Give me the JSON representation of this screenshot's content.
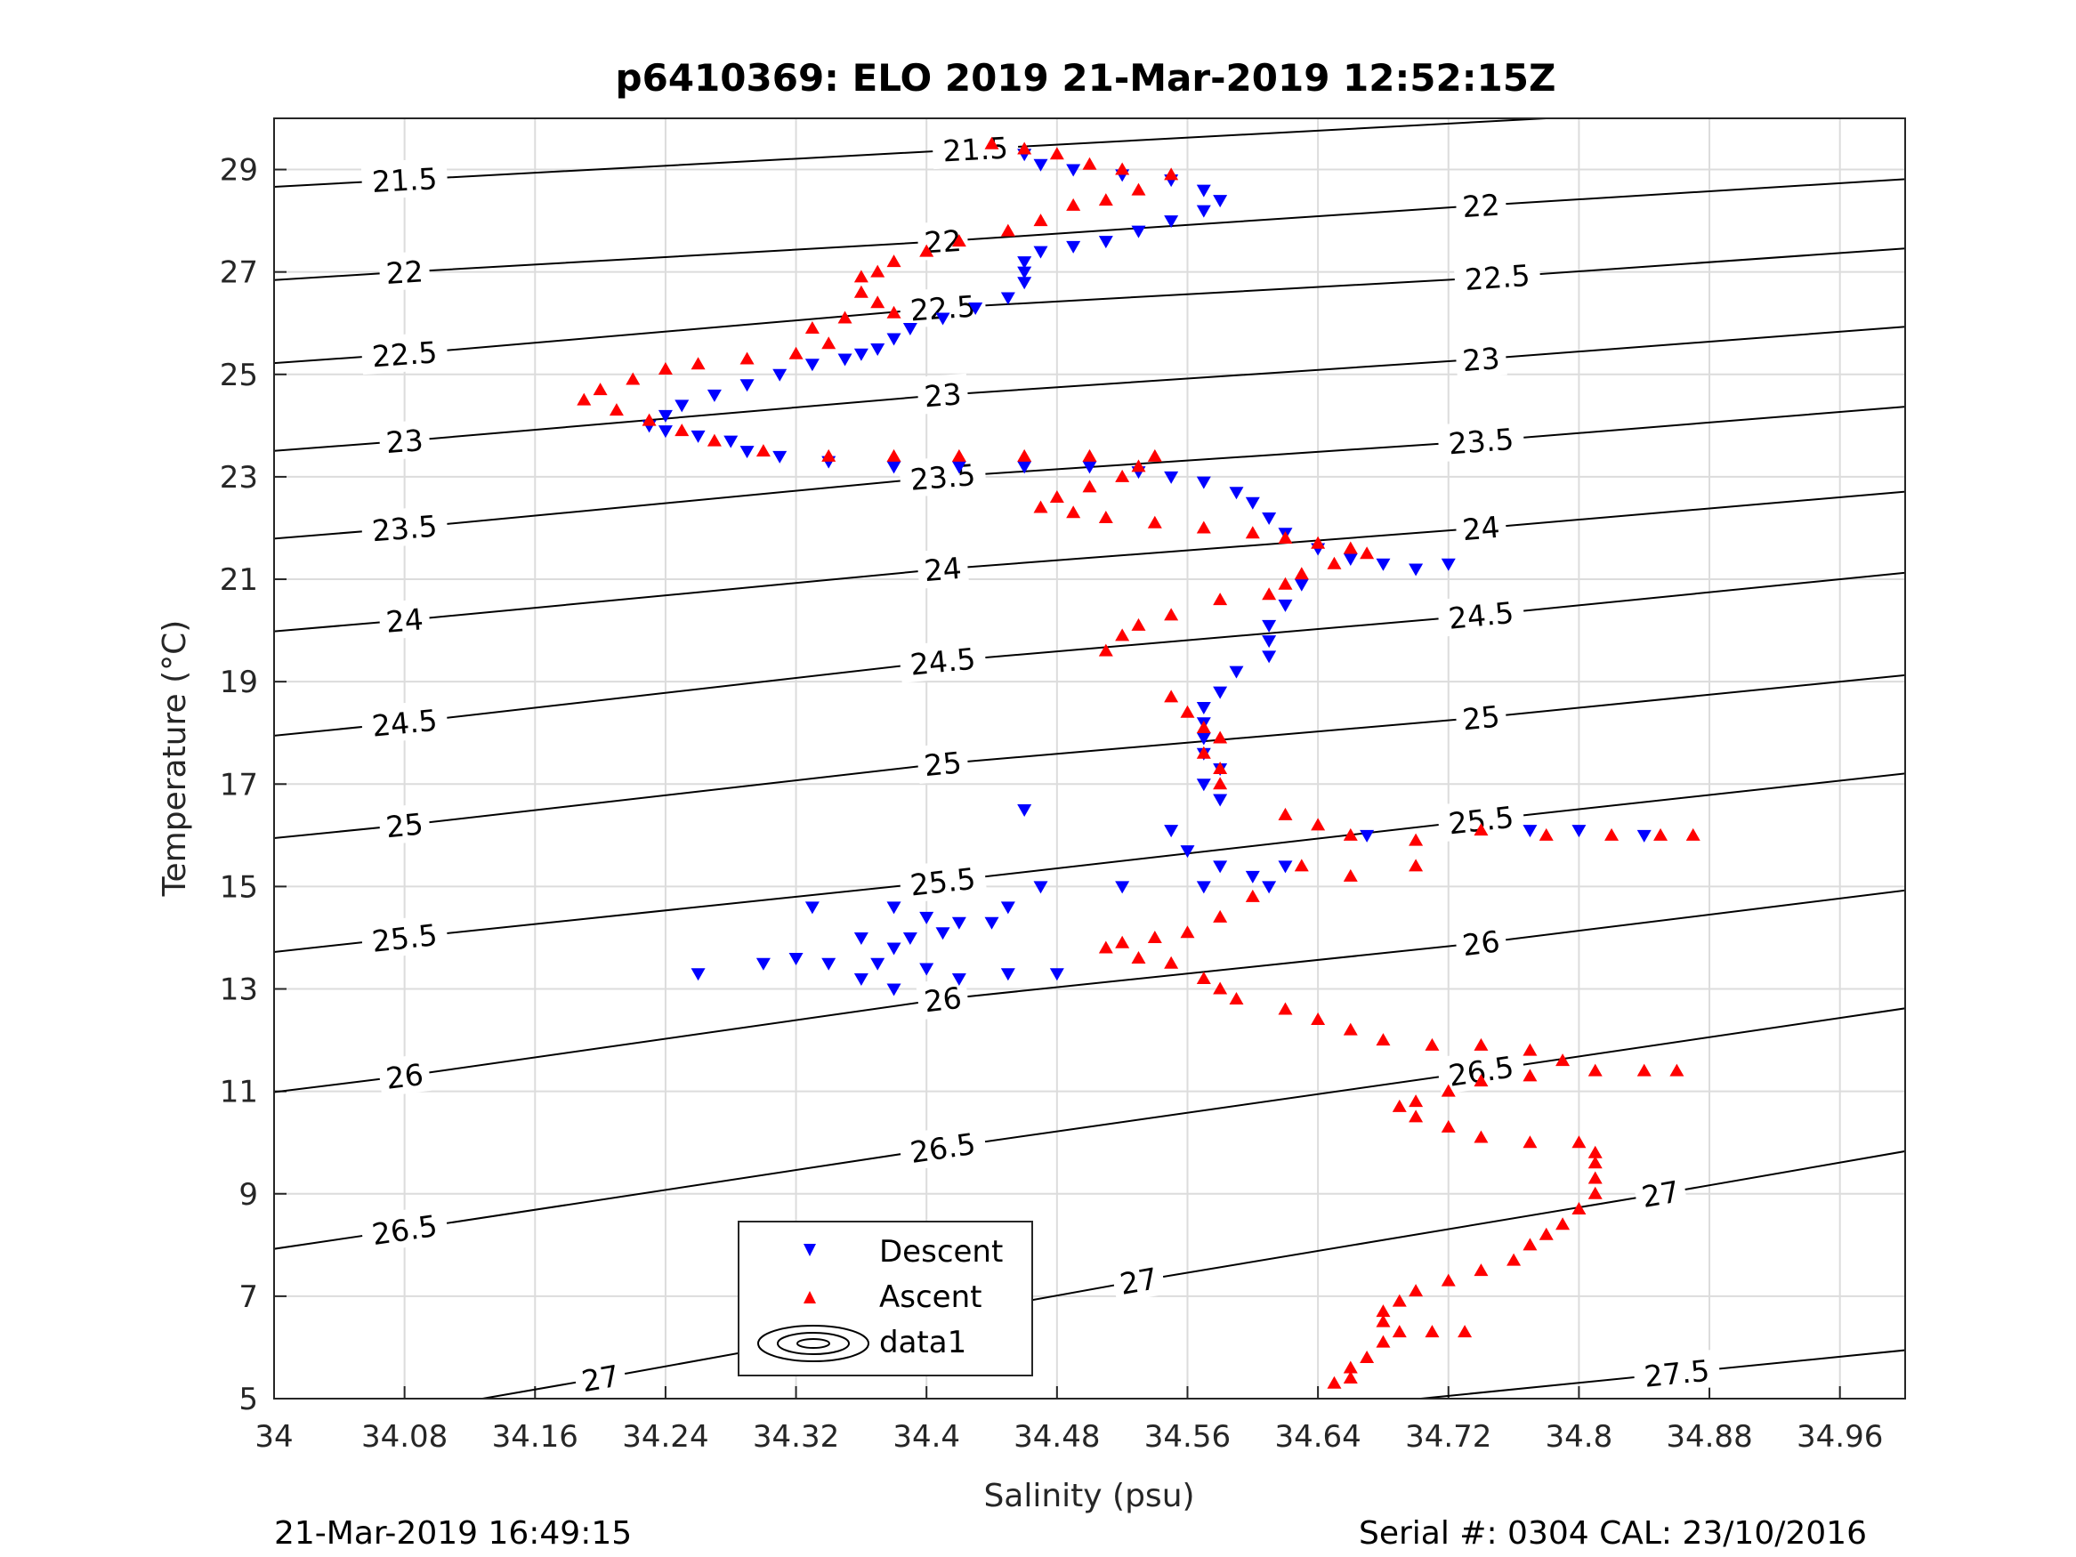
{
  "chart_data": {
    "type": "scatter",
    "title": "p6410369: ELO 2019 21-Mar-2019 12:52:15Z",
    "xlabel": "Salinity (psu)",
    "ylabel": "Temperature (°C)",
    "xlim": [
      34.0,
      35.0
    ],
    "ylim": [
      5,
      30
    ],
    "xticks": [
      "34",
      "34.08",
      "34.16",
      "34.24",
      "34.32",
      "34.4",
      "34.48",
      "34.56",
      "34.64",
      "34.72",
      "34.8",
      "34.88",
      "34.96"
    ],
    "yticks": [
      "5",
      "7",
      "9",
      "11",
      "13",
      "15",
      "17",
      "19",
      "21",
      "23",
      "25",
      "27",
      "29"
    ],
    "grid": true,
    "legend_position": "bottom-center",
    "legend": [
      "Descent",
      "Ascent",
      "data1"
    ],
    "colors": {
      "descent": "#0000ff",
      "ascent": "#ff0000",
      "contour": "#000000"
    },
    "footer_left": "21-Mar-2019 16:49:15",
    "footer_right": "Serial #: 0304  CAL: 23/10/2016",
    "density_contours": [
      {
        "level": "21.5",
        "label_positions": [
          [
            34.08,
            28.8
          ],
          [
            34.43,
            29.4
          ]
        ]
      },
      {
        "level": "22",
        "label_positions": [
          [
            34.08,
            27.0
          ],
          [
            34.41,
            27.6
          ],
          [
            34.74,
            28.3
          ]
        ]
      },
      {
        "level": "22.5",
        "label_positions": [
          [
            34.08,
            25.4
          ],
          [
            34.41,
            26.3
          ],
          [
            34.75,
            26.9
          ]
        ]
      },
      {
        "level": "23",
        "label_positions": [
          [
            34.08,
            23.7
          ],
          [
            34.41,
            24.6
          ],
          [
            34.74,
            25.3
          ]
        ]
      },
      {
        "level": "23.5",
        "label_positions": [
          [
            34.08,
            22.0
          ],
          [
            34.41,
            23.0
          ],
          [
            34.74,
            23.7
          ]
        ]
      },
      {
        "level": "24",
        "label_positions": [
          [
            34.08,
            20.2
          ],
          [
            34.41,
            21.2
          ],
          [
            34.74,
            22.0
          ]
        ]
      },
      {
        "level": "24.5",
        "label_positions": [
          [
            34.08,
            18.2
          ],
          [
            34.41,
            19.4
          ],
          [
            34.74,
            20.3
          ]
        ]
      },
      {
        "level": "25",
        "label_positions": [
          [
            34.08,
            16.2
          ],
          [
            34.41,
            17.4
          ],
          [
            34.74,
            18.3
          ]
        ]
      },
      {
        "level": "25.5",
        "label_positions": [
          [
            34.08,
            14.0
          ],
          [
            34.41,
            15.1
          ],
          [
            34.74,
            16.3
          ]
        ]
      },
      {
        "level": "26",
        "label_positions": [
          [
            34.08,
            11.3
          ],
          [
            34.41,
            12.8
          ],
          [
            34.74,
            13.9
          ]
        ]
      },
      {
        "level": "26.5",
        "label_positions": [
          [
            34.08,
            8.3
          ],
          [
            34.41,
            9.9
          ],
          [
            34.74,
            11.4
          ]
        ]
      },
      {
        "level": "27",
        "label_positions": [
          [
            34.2,
            5.4
          ],
          [
            34.53,
            7.3
          ],
          [
            34.85,
            9.0
          ]
        ]
      },
      {
        "level": "27.5",
        "label_positions": [
          [
            34.86,
            5.5
          ]
        ]
      }
    ],
    "series": [
      {
        "name": "Descent",
        "marker": "triangle-down",
        "points": [
          [
            34.46,
            29.3
          ],
          [
            34.47,
            29.1
          ],
          [
            34.49,
            29.0
          ],
          [
            34.52,
            28.9
          ],
          [
            34.55,
            28.8
          ],
          [
            34.57,
            28.6
          ],
          [
            34.58,
            28.4
          ],
          [
            34.57,
            28.2
          ],
          [
            34.55,
            28.0
          ],
          [
            34.53,
            27.8
          ],
          [
            34.51,
            27.6
          ],
          [
            34.49,
            27.5
          ],
          [
            34.47,
            27.4
          ],
          [
            34.46,
            27.2
          ],
          [
            34.46,
            27.0
          ],
          [
            34.46,
            26.8
          ],
          [
            34.45,
            26.5
          ],
          [
            34.43,
            26.3
          ],
          [
            34.41,
            26.1
          ],
          [
            34.39,
            25.9
          ],
          [
            34.38,
            25.7
          ],
          [
            34.37,
            25.5
          ],
          [
            34.36,
            25.4
          ],
          [
            34.35,
            25.3
          ],
          [
            34.33,
            25.2
          ],
          [
            34.31,
            25.0
          ],
          [
            34.29,
            24.8
          ],
          [
            34.27,
            24.6
          ],
          [
            34.25,
            24.4
          ],
          [
            34.24,
            24.2
          ],
          [
            34.23,
            24.0
          ],
          [
            34.24,
            23.9
          ],
          [
            34.26,
            23.8
          ],
          [
            34.28,
            23.7
          ],
          [
            34.29,
            23.5
          ],
          [
            34.31,
            23.4
          ],
          [
            34.34,
            23.3
          ],
          [
            34.38,
            23.2
          ],
          [
            34.42,
            23.2
          ],
          [
            34.46,
            23.2
          ],
          [
            34.5,
            23.2
          ],
          [
            34.53,
            23.1
          ],
          [
            34.55,
            23.0
          ],
          [
            34.57,
            22.9
          ],
          [
            34.59,
            22.7
          ],
          [
            34.6,
            22.5
          ],
          [
            34.61,
            22.2
          ],
          [
            34.62,
            21.9
          ],
          [
            34.64,
            21.6
          ],
          [
            34.66,
            21.4
          ],
          [
            34.68,
            21.3
          ],
          [
            34.7,
            21.2
          ],
          [
            34.72,
            21.3
          ],
          [
            34.63,
            20.9
          ],
          [
            34.62,
            20.5
          ],
          [
            34.61,
            20.1
          ],
          [
            34.61,
            19.8
          ],
          [
            34.61,
            19.5
          ],
          [
            34.59,
            19.2
          ],
          [
            34.58,
            18.8
          ],
          [
            34.57,
            18.5
          ],
          [
            34.57,
            18.2
          ],
          [
            34.57,
            17.9
          ],
          [
            34.57,
            17.6
          ],
          [
            34.58,
            17.3
          ],
          [
            34.57,
            17.0
          ],
          [
            34.58,
            16.7
          ],
          [
            34.55,
            16.1
          ],
          [
            34.56,
            15.7
          ],
          [
            34.58,
            15.4
          ],
          [
            34.6,
            15.2
          ],
          [
            34.61,
            15.0
          ],
          [
            34.62,
            15.4
          ],
          [
            34.57,
            15.0
          ],
          [
            34.52,
            15.0
          ],
          [
            34.47,
            15.0
          ],
          [
            34.45,
            14.6
          ],
          [
            34.44,
            14.3
          ],
          [
            34.42,
            14.3
          ],
          [
            34.41,
            14.1
          ],
          [
            34.4,
            14.4
          ],
          [
            34.39,
            14.0
          ],
          [
            34.38,
            13.8
          ],
          [
            34.37,
            13.5
          ],
          [
            34.36,
            13.2
          ],
          [
            34.38,
            13.0
          ],
          [
            34.4,
            13.4
          ],
          [
            34.42,
            13.2
          ],
          [
            34.45,
            13.3
          ],
          [
            34.48,
            13.3
          ],
          [
            34.34,
            13.5
          ],
          [
            34.32,
            13.6
          ],
          [
            34.3,
            13.5
          ],
          [
            34.26,
            13.3
          ],
          [
            34.33,
            14.6
          ],
          [
            34.36,
            14.0
          ],
          [
            34.38,
            14.6
          ],
          [
            34.46,
            16.5
          ],
          [
            34.77,
            16.1
          ],
          [
            34.8,
            16.1
          ],
          [
            34.84,
            16.0
          ],
          [
            34.67,
            16.0
          ]
        ]
      },
      {
        "name": "Ascent",
        "marker": "triangle-up",
        "points": [
          [
            34.44,
            29.5
          ],
          [
            34.46,
            29.4
          ],
          [
            34.48,
            29.3
          ],
          [
            34.5,
            29.1
          ],
          [
            34.52,
            29.0
          ],
          [
            34.55,
            28.9
          ],
          [
            34.53,
            28.6
          ],
          [
            34.51,
            28.4
          ],
          [
            34.49,
            28.3
          ],
          [
            34.47,
            28.0
          ],
          [
            34.45,
            27.8
          ],
          [
            34.42,
            27.6
          ],
          [
            34.4,
            27.4
          ],
          [
            34.38,
            27.2
          ],
          [
            34.37,
            27.0
          ],
          [
            34.36,
            26.9
          ],
          [
            34.36,
            26.6
          ],
          [
            34.37,
            26.4
          ],
          [
            34.38,
            26.2
          ],
          [
            34.35,
            26.1
          ],
          [
            34.33,
            25.9
          ],
          [
            34.34,
            25.6
          ],
          [
            34.32,
            25.4
          ],
          [
            34.29,
            25.3
          ],
          [
            34.26,
            25.2
          ],
          [
            34.24,
            25.1
          ],
          [
            34.22,
            24.9
          ],
          [
            34.2,
            24.7
          ],
          [
            34.19,
            24.5
          ],
          [
            34.21,
            24.3
          ],
          [
            34.23,
            24.1
          ],
          [
            34.25,
            23.9
          ],
          [
            34.27,
            23.7
          ],
          [
            34.3,
            23.5
          ],
          [
            34.34,
            23.4
          ],
          [
            34.38,
            23.4
          ],
          [
            34.42,
            23.4
          ],
          [
            34.46,
            23.4
          ],
          [
            34.5,
            23.4
          ],
          [
            34.54,
            23.4
          ],
          [
            34.53,
            23.2
          ],
          [
            34.52,
            23.0
          ],
          [
            34.5,
            22.8
          ],
          [
            34.48,
            22.6
          ],
          [
            34.47,
            22.4
          ],
          [
            34.49,
            22.3
          ],
          [
            34.51,
            22.2
          ],
          [
            34.54,
            22.1
          ],
          [
            34.57,
            22.0
          ],
          [
            34.6,
            21.9
          ],
          [
            34.62,
            21.8
          ],
          [
            34.64,
            21.7
          ],
          [
            34.66,
            21.6
          ],
          [
            34.67,
            21.5
          ],
          [
            34.65,
            21.3
          ],
          [
            34.63,
            21.1
          ],
          [
            34.62,
            20.9
          ],
          [
            34.61,
            20.7
          ],
          [
            34.58,
            20.6
          ],
          [
            34.55,
            20.3
          ],
          [
            34.53,
            20.1
          ],
          [
            34.52,
            19.9
          ],
          [
            34.51,
            19.6
          ],
          [
            34.55,
            18.7
          ],
          [
            34.56,
            18.4
          ],
          [
            34.57,
            18.1
          ],
          [
            34.58,
            17.9
          ],
          [
            34.57,
            17.6
          ],
          [
            34.58,
            17.3
          ],
          [
            34.58,
            17.0
          ],
          [
            34.62,
            16.4
          ],
          [
            34.64,
            16.2
          ],
          [
            34.66,
            16.0
          ],
          [
            34.7,
            15.9
          ],
          [
            34.74,
            16.1
          ],
          [
            34.78,
            16.0
          ],
          [
            34.82,
            16.0
          ],
          [
            34.85,
            16.0
          ],
          [
            34.87,
            16.0
          ],
          [
            34.63,
            15.4
          ],
          [
            34.66,
            15.2
          ],
          [
            34.7,
            15.4
          ],
          [
            34.6,
            14.8
          ],
          [
            34.58,
            14.4
          ],
          [
            34.56,
            14.1
          ],
          [
            34.54,
            14.0
          ],
          [
            34.52,
            13.9
          ],
          [
            34.51,
            13.8
          ],
          [
            34.53,
            13.6
          ],
          [
            34.55,
            13.5
          ],
          [
            34.57,
            13.2
          ],
          [
            34.58,
            13.0
          ],
          [
            34.59,
            12.8
          ],
          [
            34.62,
            12.6
          ],
          [
            34.64,
            12.4
          ],
          [
            34.66,
            12.2
          ],
          [
            34.68,
            12.0
          ],
          [
            34.71,
            11.9
          ],
          [
            34.74,
            11.9
          ],
          [
            34.77,
            11.8
          ],
          [
            34.79,
            11.6
          ],
          [
            34.81,
            11.4
          ],
          [
            34.84,
            11.4
          ],
          [
            34.86,
            11.4
          ],
          [
            34.77,
            11.3
          ],
          [
            34.74,
            11.2
          ],
          [
            34.72,
            11.0
          ],
          [
            34.7,
            10.8
          ],
          [
            34.69,
            10.7
          ],
          [
            34.7,
            10.5
          ],
          [
            34.72,
            10.3
          ],
          [
            34.74,
            10.1
          ],
          [
            34.77,
            10.0
          ],
          [
            34.8,
            10.0
          ],
          [
            34.81,
            9.8
          ],
          [
            34.81,
            9.6
          ],
          [
            34.81,
            9.3
          ],
          [
            34.81,
            9.0
          ],
          [
            34.8,
            8.7
          ],
          [
            34.79,
            8.4
          ],
          [
            34.78,
            8.2
          ],
          [
            34.77,
            8.0
          ],
          [
            34.76,
            7.7
          ],
          [
            34.74,
            7.5
          ],
          [
            34.72,
            7.3
          ],
          [
            34.7,
            7.1
          ],
          [
            34.69,
            6.9
          ],
          [
            34.68,
            6.7
          ],
          [
            34.68,
            6.5
          ],
          [
            34.69,
            6.3
          ],
          [
            34.71,
            6.3
          ],
          [
            34.73,
            6.3
          ],
          [
            34.68,
            6.1
          ],
          [
            34.67,
            5.8
          ],
          [
            34.66,
            5.6
          ],
          [
            34.66,
            5.4
          ],
          [
            34.65,
            5.3
          ]
        ]
      }
    ]
  }
}
